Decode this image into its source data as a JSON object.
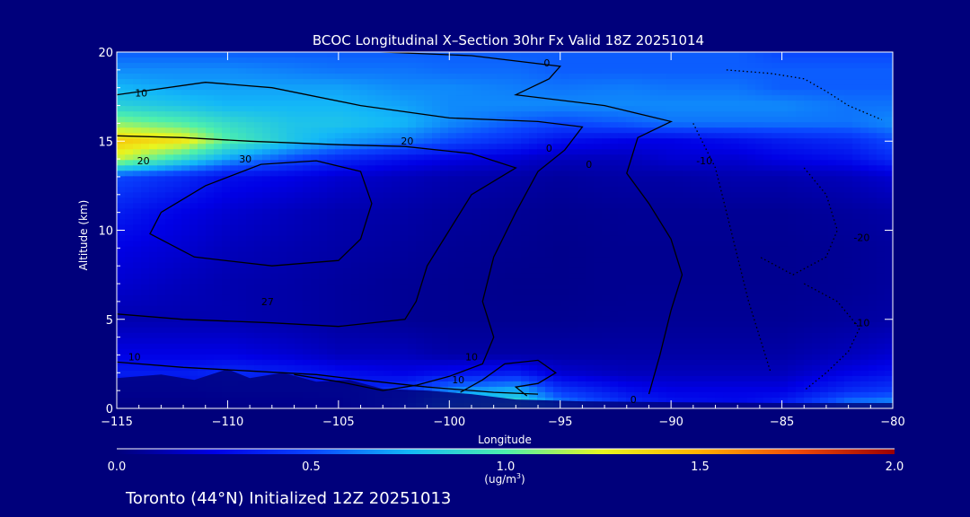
{
  "chart_data": {
    "type": "heatmap",
    "title": "BCOC Longitudinal X–Section 30hr  Fx Valid 18Z 20251014",
    "xlabel": "Longitude",
    "ylabel": "Altitude (km)",
    "xlim": [
      -115,
      -80
    ],
    "ylim": [
      0,
      20
    ],
    "x_ticks": [
      -115,
      -110,
      -105,
      -100,
      -95,
      -90,
      -85,
      -80
    ],
    "x_tick_labels": [
      "−115",
      "−110",
      "−105",
      "−100",
      "−95",
      "−90",
      "−85",
      "−80"
    ],
    "y_ticks": [
      0,
      5,
      10,
      15,
      20
    ],
    "y_tick_labels": [
      "0",
      "5",
      "10",
      "15",
      "20"
    ],
    "colorbar": {
      "min": 0.0,
      "max": 2.0,
      "ticks": [
        0.0,
        0.5,
        1.0,
        1.5,
        2.0
      ],
      "tick_labels": [
        "0.0",
        "0.5",
        "1.0",
        "1.5",
        "2.0"
      ],
      "unit_label": "(ug/m",
      "unit_exp": "3",
      "unit_close": ")"
    },
    "colormap_stops": [
      "#00007b",
      "#0000e6",
      "#0a46ff",
      "#13b8f8",
      "#4ef0ac",
      "#e8f51f",
      "#ffb000",
      "#f04a0a",
      "#9a0000"
    ],
    "field": {
      "lon": [
        -115,
        -112,
        -110,
        -107,
        -105,
        -102,
        -100,
        -97,
        -95,
        -92,
        -90,
        -87,
        -85,
        -82,
        -80
      ],
      "alt": [
        0,
        1,
        2,
        3,
        5,
        7,
        9,
        11,
        13,
        14,
        15,
        16,
        17,
        18,
        19,
        20
      ],
      "values": [
        [
          0.1,
          0.1,
          0.15,
          0.2,
          0.25,
          0.55,
          0.85,
          0.95,
          0.7,
          0.45,
          0.35,
          0.3,
          0.4,
          0.7,
          0.75
        ],
        [
          0.3,
          0.3,
          0.35,
          0.35,
          0.35,
          0.45,
          0.65,
          0.75,
          0.45,
          0.3,
          0.25,
          0.25,
          0.25,
          0.4,
          0.45
        ],
        [
          0.35,
          0.35,
          0.4,
          0.35,
          0.3,
          0.25,
          0.3,
          0.35,
          0.2,
          0.15,
          0.15,
          0.15,
          0.15,
          0.25,
          0.3
        ],
        [
          0.25,
          0.25,
          0.25,
          0.2,
          0.15,
          0.15,
          0.1,
          0.1,
          0.1,
          0.1,
          0.1,
          0.1,
          0.1,
          0.15,
          0.2
        ],
        [
          0.12,
          0.12,
          0.12,
          0.1,
          0.08,
          0.06,
          0.05,
          0.05,
          0.05,
          0.06,
          0.06,
          0.06,
          0.06,
          0.08,
          0.1
        ],
        [
          0.2,
          0.15,
          0.12,
          0.1,
          0.08,
          0.06,
          0.05,
          0.04,
          0.04,
          0.05,
          0.05,
          0.05,
          0.05,
          0.06,
          0.08
        ],
        [
          0.25,
          0.2,
          0.15,
          0.12,
          0.1,
          0.08,
          0.06,
          0.05,
          0.04,
          0.05,
          0.05,
          0.05,
          0.05,
          0.06,
          0.08
        ],
        [
          0.35,
          0.25,
          0.2,
          0.15,
          0.12,
          0.1,
          0.08,
          0.06,
          0.05,
          0.06,
          0.06,
          0.06,
          0.06,
          0.08,
          0.1
        ],
        [
          0.5,
          0.4,
          0.3,
          0.25,
          0.2,
          0.15,
          0.12,
          0.1,
          0.08,
          0.1,
          0.1,
          0.12,
          0.12,
          0.15,
          0.2
        ],
        [
          1.2,
          0.9,
          0.7,
          0.5,
          0.4,
          0.3,
          0.25,
          0.2,
          0.15,
          0.15,
          0.2,
          0.2,
          0.25,
          0.3,
          0.4
        ],
        [
          1.4,
          1.3,
          1.0,
          0.8,
          0.7,
          0.6,
          0.5,
          0.4,
          0.3,
          0.25,
          0.25,
          0.3,
          0.35,
          0.4,
          0.5
        ],
        [
          1.1,
          1.0,
          0.9,
          0.8,
          0.8,
          0.75,
          0.65,
          0.55,
          0.5,
          0.55,
          0.6,
          0.6,
          0.6,
          0.6,
          0.65
        ],
        [
          0.85,
          0.8,
          0.75,
          0.75,
          0.75,
          0.7,
          0.65,
          0.65,
          0.65,
          0.65,
          0.65,
          0.65,
          0.65,
          0.6,
          0.6
        ],
        [
          0.75,
          0.7,
          0.7,
          0.7,
          0.7,
          0.65,
          0.65,
          0.62,
          0.6,
          0.62,
          0.6,
          0.6,
          0.55,
          0.55,
          0.55
        ],
        [
          0.65,
          0.65,
          0.65,
          0.62,
          0.6,
          0.6,
          0.58,
          0.58,
          0.55,
          0.55,
          0.55,
          0.55,
          0.55,
          0.55,
          0.55
        ],
        [
          0.55,
          0.55,
          0.55,
          0.55,
          0.55,
          0.55,
          0.55,
          0.55,
          0.55,
          0.55,
          0.55,
          0.55,
          0.5,
          0.5,
          0.5
        ]
      ]
    },
    "contours": [
      {
        "label": "0",
        "dashed": false,
        "points": [
          [
            -105,
            20.1
          ],
          [
            -99,
            19.8
          ],
          [
            -95,
            19.2
          ],
          [
            -95.5,
            18.5
          ],
          [
            -97,
            17.6
          ],
          [
            -93,
            17.0
          ],
          [
            -90,
            16.1
          ],
          [
            -91.5,
            15.2
          ],
          [
            -92,
            13.2
          ],
          [
            -91,
            11.5
          ],
          [
            -90,
            9.5
          ],
          [
            -89.5,
            7.5
          ],
          [
            -90,
            5.5
          ],
          [
            -90.5,
            3.0
          ],
          [
            -91,
            0.8
          ]
        ]
      },
      {
        "label": "0",
        "dashed": false,
        "points": [
          [
            -99.5,
            0.9
          ],
          [
            -98.5,
            1.6
          ],
          [
            -97.5,
            2.5
          ],
          [
            -96,
            2.7
          ],
          [
            -95.2,
            2.0
          ],
          [
            -96,
            1.4
          ],
          [
            -97,
            1.2
          ],
          [
            -96.5,
            0.7
          ]
        ]
      },
      {
        "label": "10",
        "dashed": false,
        "points": [
          [
            -115,
            17.6
          ],
          [
            -111,
            18.3
          ],
          [
            -108,
            18.0
          ],
          [
            -104,
            17.0
          ],
          [
            -100,
            16.3
          ],
          [
            -96,
            16.1
          ],
          [
            -94,
            15.8
          ],
          [
            -94.8,
            14.5
          ],
          [
            -96,
            13.3
          ],
          [
            -97,
            11.0
          ],
          [
            -98,
            8.5
          ],
          [
            -98.5,
            6.0
          ],
          [
            -98,
            4.0
          ],
          [
            -98.5,
            2.5
          ],
          [
            -100,
            1.8
          ],
          [
            -101.5,
            1.3
          ],
          [
            -103,
            1.0
          ],
          [
            -105,
            1.5
          ],
          [
            -107,
            1.9
          ]
        ]
      },
      {
        "label": "20",
        "dashed": false,
        "points": [
          [
            -115,
            15.3
          ],
          [
            -112,
            15.2
          ],
          [
            -109,
            15.0
          ],
          [
            -105,
            14.8
          ],
          [
            -102,
            14.7
          ],
          [
            -99,
            14.3
          ],
          [
            -97,
            13.5
          ],
          [
            -99,
            12.0
          ],
          [
            -100,
            10.0
          ],
          [
            -101,
            8.0
          ],
          [
            -101.5,
            6.0
          ],
          [
            -102,
            5.0
          ],
          [
            -105,
            4.6
          ],
          [
            -108,
            4.8
          ],
          [
            -112,
            5.0
          ],
          [
            -115,
            5.3
          ]
        ]
      },
      {
        "label": "30",
        "dashed": false,
        "points": [
          [
            -113,
            11.0
          ],
          [
            -111,
            12.5
          ],
          [
            -108.5,
            13.7
          ],
          [
            -106,
            13.9
          ],
          [
            -104,
            13.3
          ],
          [
            -103.5,
            11.5
          ],
          [
            -104,
            9.5
          ],
          [
            -105,
            8.3
          ],
          [
            -108,
            8.0
          ],
          [
            -111.5,
            8.5
          ],
          [
            -113.5,
            9.8
          ],
          [
            -113,
            11.0
          ]
        ]
      },
      {
        "label": "10",
        "dashed": false,
        "points": [
          [
            -115,
            2.6
          ],
          [
            -112,
            2.3
          ],
          [
            -109,
            2.1
          ],
          [
            -106,
            1.9
          ],
          [
            -104,
            1.6
          ],
          [
            -101,
            1.2
          ],
          [
            -98,
            0.9
          ],
          [
            -96,
            0.8
          ]
        ]
      },
      {
        "label": "-10",
        "dashed": true,
        "points": [
          [
            -89,
            16.0
          ],
          [
            -88,
            13.5
          ],
          [
            -87.5,
            11.0
          ],
          [
            -87,
            8.5
          ],
          [
            -86.5,
            6.0
          ],
          [
            -86,
            4.0
          ],
          [
            -85.5,
            2.0
          ]
        ]
      },
      {
        "label": "-20",
        "dashed": true,
        "points": [
          [
            -84,
            13.5
          ],
          [
            -83,
            12.0
          ],
          [
            -82.5,
            10.0
          ],
          [
            -83,
            8.5
          ],
          [
            -84.5,
            7.5
          ],
          [
            -86,
            8.5
          ]
        ]
      },
      {
        "label": "-10",
        "dashed": true,
        "points": [
          [
            -84,
            7.0
          ],
          [
            -82.5,
            6.0
          ],
          [
            -81.5,
            4.5
          ],
          [
            -82,
            3.2
          ],
          [
            -83,
            2.0
          ],
          [
            -84,
            1.0
          ]
        ]
      },
      {
        "label": "",
        "dashed": true,
        "points": [
          [
            -87.5,
            19.0
          ],
          [
            -85.5,
            18.8
          ],
          [
            -84,
            18.5
          ],
          [
            -83,
            17.8
          ],
          [
            -82,
            17.0
          ],
          [
            -80.5,
            16.2
          ]
        ]
      }
    ],
    "contour_labels": [
      {
        "text": "0",
        "lon": -95.6,
        "alt": 19.2
      },
      {
        "text": "10",
        "lon": -113.9,
        "alt": 17.5
      },
      {
        "text": "20",
        "lon": -113.8,
        "alt": 13.7
      },
      {
        "text": "30",
        "lon": -109.2,
        "alt": 13.8
      },
      {
        "text": "20",
        "lon": -101.9,
        "alt": 14.8
      },
      {
        "text": "0",
        "lon": -95.5,
        "alt": 14.4
      },
      {
        "text": "0",
        "lon": -93.7,
        "alt": 13.5
      },
      {
        "text": "-10",
        "lon": -88.5,
        "alt": 13.7
      },
      {
        "text": "-20",
        "lon": -81.4,
        "alt": 9.4
      },
      {
        "text": "27",
        "lon": -108.2,
        "alt": 5.8
      },
      {
        "text": "-10",
        "lon": -81.4,
        "alt": 4.6
      },
      {
        "text": "10",
        "lon": -114.2,
        "alt": 2.7
      },
      {
        "text": "10",
        "lon": -99.0,
        "alt": 2.7
      },
      {
        "text": "10",
        "lon": -99.6,
        "alt": 1.4
      },
      {
        "text": "0",
        "lon": -91.7,
        "alt": 0.3
      }
    ]
  },
  "footer": {
    "caption": "Toronto (44°N) Initialized 12Z 20251013"
  }
}
